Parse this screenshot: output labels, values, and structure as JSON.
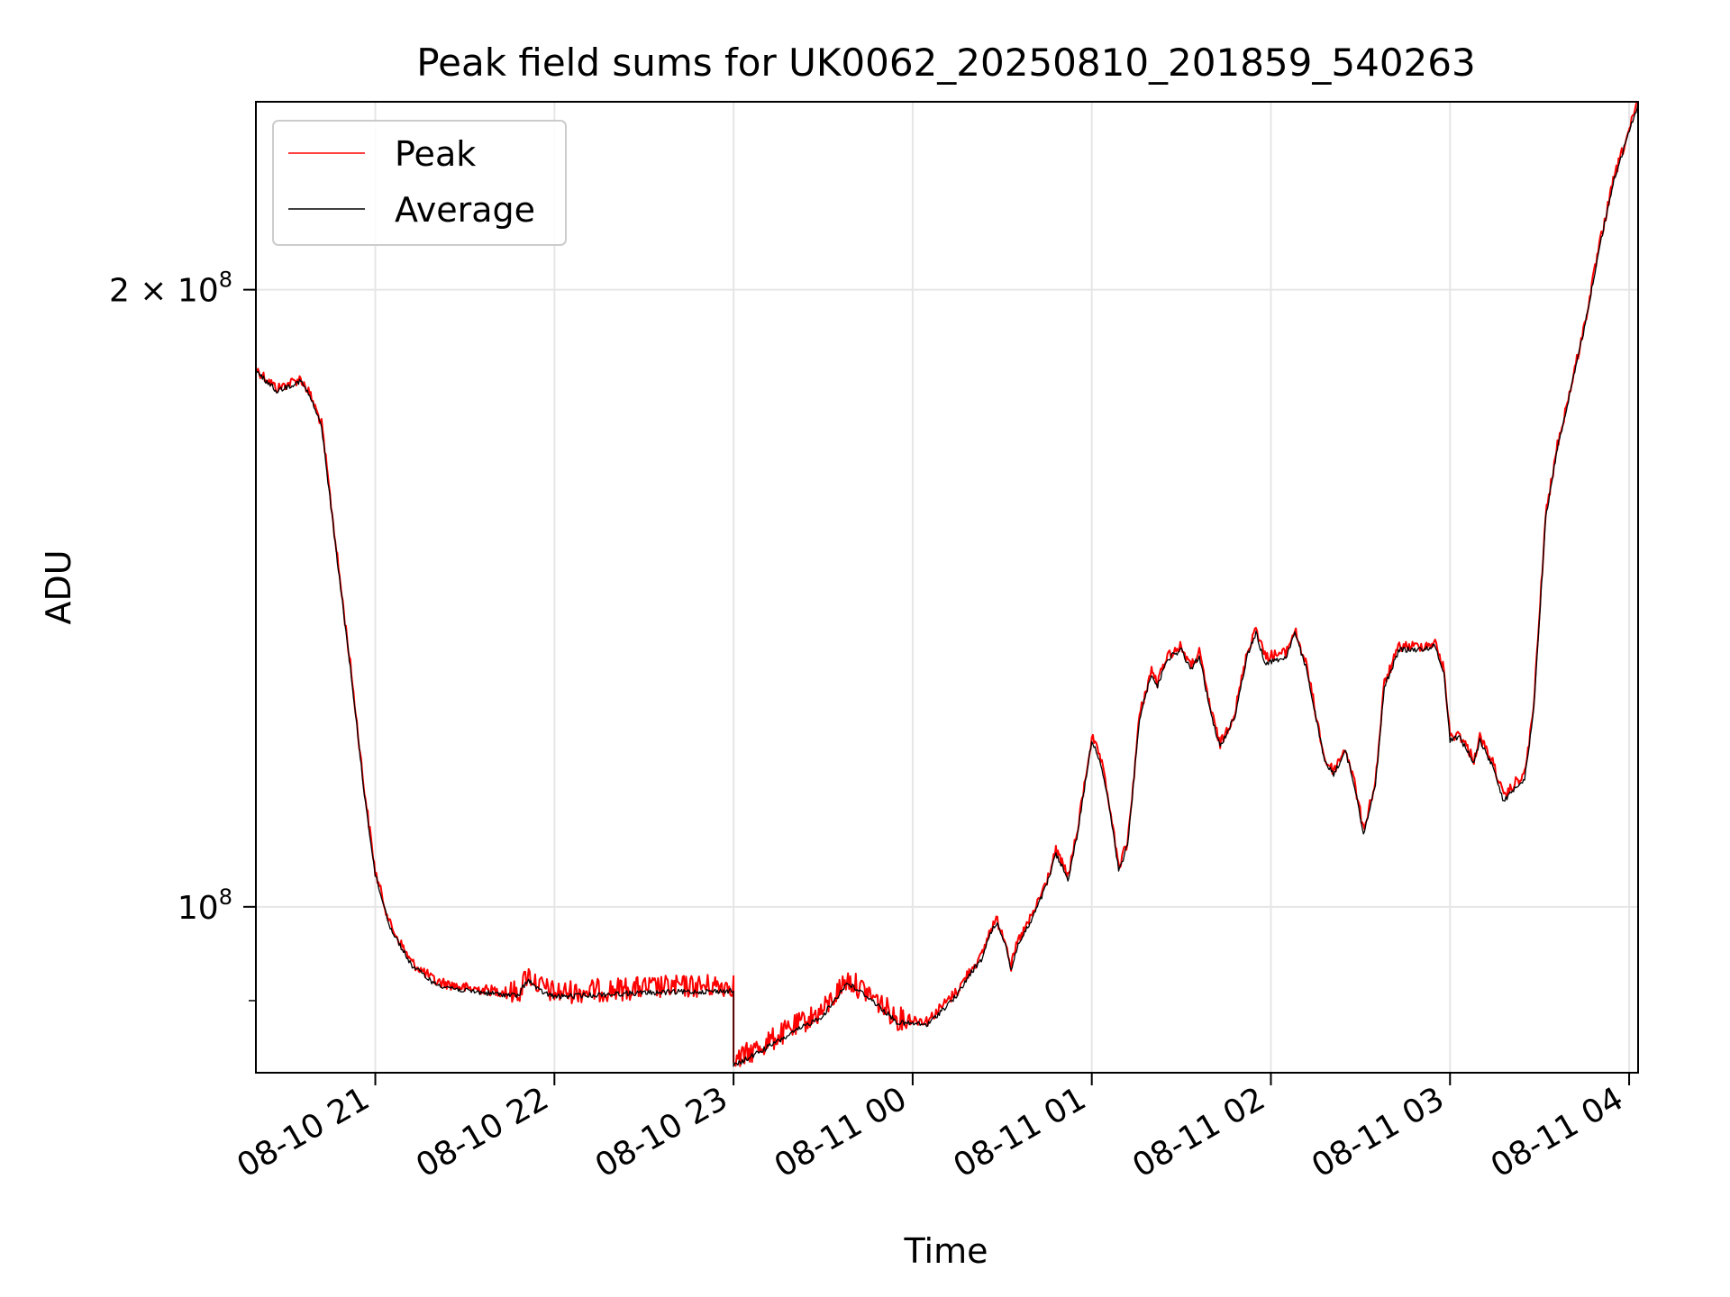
{
  "chart_data": {
    "type": "line",
    "title": "Peak field sums for UK0062_20250810_201859_540263",
    "xlabel": "Time",
    "ylabel": "ADU",
    "x_scale": "time",
    "y_scale": "log",
    "xlim": [
      "2025-08-10 20:20",
      "2025-08-11 04:03"
    ],
    "ylim": [
      83000000,
      247000000
    ],
    "x_ticks": [
      {
        "t": "2025-08-10 21:00",
        "label": "08-10 21"
      },
      {
        "t": "2025-08-10 22:00",
        "label": "08-10 22"
      },
      {
        "t": "2025-08-10 23:00",
        "label": "08-10 23"
      },
      {
        "t": "2025-08-11 00:00",
        "label": "08-11 00"
      },
      {
        "t": "2025-08-11 01:00",
        "label": "08-11 01"
      },
      {
        "t": "2025-08-11 02:00",
        "label": "08-11 02"
      },
      {
        "t": "2025-08-11 03:00",
        "label": "08-11 03"
      },
      {
        "t": "2025-08-11 04:00",
        "label": "08-11 04"
      }
    ],
    "y_ticks": [
      {
        "value": 100000000,
        "label_base": "10",
        "label_exp": "8"
      },
      {
        "value": 200000000,
        "label_base": "2 × 10",
        "label_exp": "8"
      }
    ],
    "grid": true,
    "legend_position": "top-left",
    "series": [
      {
        "name": "Peak",
        "color": "#ff0000",
        "noise": 0.006,
        "points": [
          [
            "2025-08-10 20:20",
            183000000
          ],
          [
            "2025-08-10 20:27",
            179000000
          ],
          [
            "2025-08-10 20:35",
            181000000
          ],
          [
            "2025-08-10 20:38",
            178000000
          ],
          [
            "2025-08-10 20:42",
            172000000
          ],
          [
            "2025-08-10 20:48",
            145000000
          ],
          [
            "2025-08-10 20:52",
            130000000
          ],
          [
            "2025-08-10 20:56",
            115000000
          ],
          [
            "2025-08-10 21:00",
            104000000
          ],
          [
            "2025-08-10 21:05",
            98000000
          ],
          [
            "2025-08-10 21:12",
            94000000
          ],
          [
            "2025-08-10 21:20",
            92000000
          ],
          [
            "2025-08-10 21:30",
            91300000
          ],
          [
            "2025-08-10 21:40",
            91000000
          ],
          [
            "2025-08-10 21:48",
            90800000
          ],
          [
            "2025-08-10 21:51",
            92800000
          ],
          [
            "2025-08-10 21:55",
            91500000
          ],
          [
            "2025-08-10 22:00",
            90800000
          ],
          [
            "2025-08-10 22:30",
            91300000
          ],
          [
            "2025-08-10 23:00",
            91600000
          ],
          [
            "2025-08-10 23:00",
            84000000
          ],
          [
            "2025-08-10 23:15",
            86500000
          ],
          [
            "2025-08-10 23:30",
            89000000
          ],
          [
            "2025-08-10 23:38",
            92200000
          ],
          [
            "2025-08-10 23:45",
            90800000
          ],
          [
            "2025-08-10 23:55",
            88200000
          ],
          [
            "2025-08-11 00:05",
            88000000
          ],
          [
            "2025-08-11 00:15",
            91000000
          ],
          [
            "2025-08-11 00:20",
            93500000
          ],
          [
            "2025-08-11 00:23",
            94500000
          ],
          [
            "2025-08-11 00:26",
            97500000
          ],
          [
            "2025-08-11 00:28",
            98600000
          ],
          [
            "2025-08-11 00:31",
            96500000
          ],
          [
            "2025-08-11 00:33",
            93500000
          ],
          [
            "2025-08-11 00:35",
            96000000
          ],
          [
            "2025-08-11 00:40",
            99000000
          ],
          [
            "2025-08-11 00:45",
            103000000
          ],
          [
            "2025-08-11 00:48",
            106500000
          ],
          [
            "2025-08-11 00:50",
            105000000
          ],
          [
            "2025-08-11 00:52",
            103500000
          ],
          [
            "2025-08-11 00:55",
            108500000
          ],
          [
            "2025-08-11 01:00",
            121000000
          ],
          [
            "2025-08-11 01:03",
            118000000
          ],
          [
            "2025-08-11 01:06",
            112000000
          ],
          [
            "2025-08-11 01:09",
            104500000
          ],
          [
            "2025-08-11 01:12",
            107500000
          ],
          [
            "2025-08-11 01:16",
            124000000
          ],
          [
            "2025-08-11 01:20",
            130500000
          ],
          [
            "2025-08-11 01:22",
            128500000
          ],
          [
            "2025-08-11 01:25",
            132500000
          ],
          [
            "2025-08-11 01:30",
            134000000
          ],
          [
            "2025-08-11 01:33",
            131000000
          ],
          [
            "2025-08-11 01:36",
            133000000
          ],
          [
            "2025-08-11 01:40",
            124500000
          ],
          [
            "2025-08-11 01:43",
            120000000
          ],
          [
            "2025-08-11 01:48",
            124500000
          ],
          [
            "2025-08-11 01:52",
            133000000
          ],
          [
            "2025-08-11 01:55",
            137000000
          ],
          [
            "2025-08-11 01:58",
            132500000
          ],
          [
            "2025-08-11 02:05",
            133000000
          ],
          [
            "2025-08-11 02:08",
            136500000
          ],
          [
            "2025-08-11 02:12",
            131000000
          ],
          [
            "2025-08-11 02:18",
            118000000
          ],
          [
            "2025-08-11 02:21",
            116500000
          ],
          [
            "2025-08-11 02:25",
            119500000
          ],
          [
            "2025-08-11 02:28",
            115000000
          ],
          [
            "2025-08-11 02:31",
            109000000
          ],
          [
            "2025-08-11 02:35",
            115000000
          ],
          [
            "2025-08-11 02:38",
            128500000
          ],
          [
            "2025-08-11 02:43",
            134000000
          ],
          [
            "2025-08-11 02:50",
            134000000
          ],
          [
            "2025-08-11 02:55",
            134500000
          ],
          [
            "2025-08-11 02:58",
            130500000
          ],
          [
            "2025-08-11 03:00",
            121000000
          ],
          [
            "2025-08-11 03:03",
            121500000
          ],
          [
            "2025-08-11 03:08",
            118000000
          ],
          [
            "2025-08-11 03:10",
            121000000
          ],
          [
            "2025-08-11 03:15",
            117000000
          ],
          [
            "2025-08-11 03:18",
            113000000
          ],
          [
            "2025-08-11 03:22",
            115000000
          ],
          [
            "2025-08-11 03:25",
            116000000
          ],
          [
            "2025-08-11 03:28",
            125000000
          ],
          [
            "2025-08-11 03:32",
            155000000
          ],
          [
            "2025-08-11 03:36",
            168000000
          ],
          [
            "2025-08-11 03:40",
            178000000
          ],
          [
            "2025-08-11 03:45",
            192000000
          ],
          [
            "2025-08-11 03:50",
            210000000
          ],
          [
            "2025-08-11 03:55",
            227000000
          ],
          [
            "2025-08-11 04:03",
            247000000
          ]
        ]
      },
      {
        "name": "Average",
        "color": "#000000",
        "noise": 0.003,
        "points": [
          [
            "2025-08-10 20:20",
            182500000
          ],
          [
            "2025-08-10 20:27",
            178500000
          ],
          [
            "2025-08-10 20:35",
            180500000
          ],
          [
            "2025-08-10 20:38",
            177500000
          ],
          [
            "2025-08-10 20:42",
            171500000
          ],
          [
            "2025-08-10 20:48",
            144500000
          ],
          [
            "2025-08-10 20:52",
            129500000
          ],
          [
            "2025-08-10 20:56",
            114500000
          ],
          [
            "2025-08-10 21:00",
            103600000
          ],
          [
            "2025-08-10 21:05",
            97700000
          ],
          [
            "2025-08-10 21:12",
            93700000
          ],
          [
            "2025-08-10 21:20",
            91700000
          ],
          [
            "2025-08-10 21:30",
            91000000
          ],
          [
            "2025-08-10 21:40",
            90700000
          ],
          [
            "2025-08-10 21:48",
            90500000
          ],
          [
            "2025-08-10 21:51",
            92200000
          ],
          [
            "2025-08-10 21:55",
            91000000
          ],
          [
            "2025-08-10 22:00",
            90400000
          ],
          [
            "2025-08-10 22:30",
            90800000
          ],
          [
            "2025-08-10 23:00",
            91000000
          ],
          [
            "2025-08-10 23:00",
            83600000
          ],
          [
            "2025-08-10 23:15",
            86000000
          ],
          [
            "2025-08-10 23:30",
            88500000
          ],
          [
            "2025-08-10 23:38",
            91800000
          ],
          [
            "2025-08-10 23:45",
            90400000
          ],
          [
            "2025-08-10 23:55",
            87800000
          ],
          [
            "2025-08-11 00:05",
            87600000
          ],
          [
            "2025-08-11 00:15",
            90600000
          ],
          [
            "2025-08-11 00:20",
            93100000
          ],
          [
            "2025-08-11 00:23",
            94100000
          ],
          [
            "2025-08-11 00:26",
            97100000
          ],
          [
            "2025-08-11 00:28",
            98200000
          ],
          [
            "2025-08-11 00:31",
            96100000
          ],
          [
            "2025-08-11 00:33",
            93100000
          ],
          [
            "2025-08-11 00:35",
            95600000
          ],
          [
            "2025-08-11 00:40",
            98600000
          ],
          [
            "2025-08-11 00:45",
            102600000
          ],
          [
            "2025-08-11 00:48",
            106100000
          ],
          [
            "2025-08-11 00:50",
            104600000
          ],
          [
            "2025-08-11 00:52",
            103100000
          ],
          [
            "2025-08-11 00:55",
            108100000
          ],
          [
            "2025-08-11 01:00",
            120600000
          ],
          [
            "2025-08-11 01:03",
            117600000
          ],
          [
            "2025-08-11 01:06",
            111600000
          ],
          [
            "2025-08-11 01:09",
            104100000
          ],
          [
            "2025-08-11 01:12",
            107100000
          ],
          [
            "2025-08-11 01:16",
            123600000
          ],
          [
            "2025-08-11 01:20",
            130000000
          ],
          [
            "2025-08-11 01:22",
            128000000
          ],
          [
            "2025-08-11 01:25",
            132000000
          ],
          [
            "2025-08-11 01:30",
            133500000
          ],
          [
            "2025-08-11 01:33",
            130500000
          ],
          [
            "2025-08-11 01:36",
            132500000
          ],
          [
            "2025-08-11 01:40",
            124000000
          ],
          [
            "2025-08-11 01:43",
            119600000
          ],
          [
            "2025-08-11 01:48",
            124000000
          ],
          [
            "2025-08-11 01:52",
            132500000
          ],
          [
            "2025-08-11 01:55",
            136000000
          ],
          [
            "2025-08-11 01:58",
            131500000
          ],
          [
            "2025-08-11 02:05",
            132300000
          ],
          [
            "2025-08-11 02:08",
            136000000
          ],
          [
            "2025-08-11 02:12",
            130500000
          ],
          [
            "2025-08-11 02:18",
            117600000
          ],
          [
            "2025-08-11 02:21",
            116100000
          ],
          [
            "2025-08-11 02:25",
            119100000
          ],
          [
            "2025-08-11 02:28",
            114600000
          ],
          [
            "2025-08-11 02:31",
            108600000
          ],
          [
            "2025-08-11 02:35",
            114600000
          ],
          [
            "2025-08-11 02:38",
            128000000
          ],
          [
            "2025-08-11 02:43",
            133500000
          ],
          [
            "2025-08-11 02:50",
            133500000
          ],
          [
            "2025-08-11 02:55",
            134000000
          ],
          [
            "2025-08-11 02:58",
            130000000
          ],
          [
            "2025-08-11 03:00",
            120600000
          ],
          [
            "2025-08-11 03:03",
            121100000
          ],
          [
            "2025-08-11 03:08",
            117600000
          ],
          [
            "2025-08-11 03:10",
            120600000
          ],
          [
            "2025-08-11 03:15",
            116500000
          ],
          [
            "2025-08-11 03:18",
            112500000
          ],
          [
            "2025-08-11 03:22",
            114500000
          ],
          [
            "2025-08-11 03:25",
            115500000
          ],
          [
            "2025-08-11 03:28",
            124600000
          ],
          [
            "2025-08-11 03:32",
            154500000
          ],
          [
            "2025-08-11 03:36",
            167500000
          ],
          [
            "2025-08-11 03:40",
            177500000
          ],
          [
            "2025-08-11 03:45",
            191500000
          ],
          [
            "2025-08-11 03:50",
            209500000
          ],
          [
            "2025-08-11 03:55",
            226500000
          ],
          [
            "2025-08-11 04:03",
            246500000
          ]
        ]
      }
    ]
  }
}
